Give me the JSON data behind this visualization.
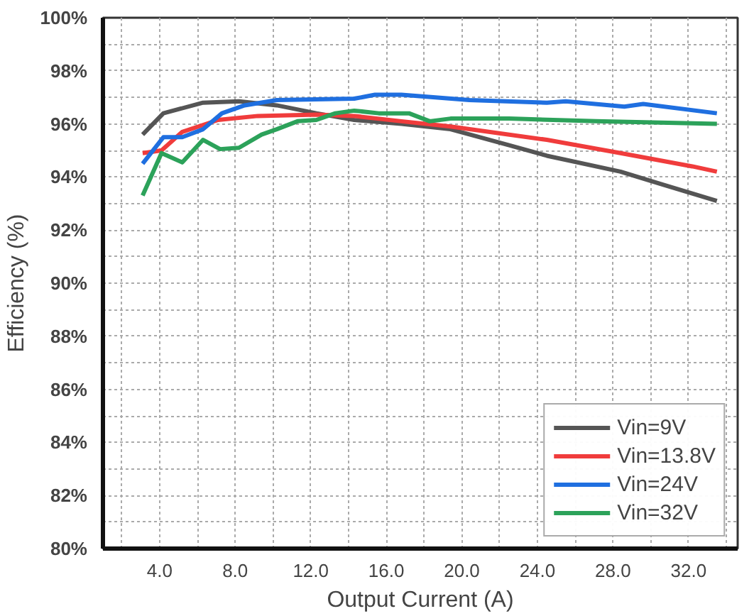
{
  "chart_data": {
    "type": "line",
    "xlabel": "Output Current (A)",
    "ylabel": "Efficiency (%)",
    "xlim": [
      1,
      34.6
    ],
    "ylim": [
      80,
      100
    ],
    "xticks": [
      {
        "value": 2,
        "label": null
      },
      {
        "value": 4,
        "label": "4.0"
      },
      {
        "value": 6,
        "label": null
      },
      {
        "value": 8,
        "label": "8.0"
      },
      {
        "value": 10,
        "label": null
      },
      {
        "value": 12,
        "label": "12.0"
      },
      {
        "value": 14,
        "label": null
      },
      {
        "value": 16,
        "label": "16.0"
      },
      {
        "value": 18,
        "label": null
      },
      {
        "value": 20,
        "label": "20.0"
      },
      {
        "value": 22,
        "label": null
      },
      {
        "value": 24,
        "label": "24.0"
      },
      {
        "value": 26,
        "label": null
      },
      {
        "value": 28,
        "label": "28.0"
      },
      {
        "value": 30,
        "label": null
      },
      {
        "value": 32,
        "label": "32.0"
      },
      {
        "value": 34,
        "label": null
      }
    ],
    "yticks": [
      {
        "value": 80,
        "label": "80%"
      },
      {
        "value": 81,
        "label": null
      },
      {
        "value": 82,
        "label": "82%"
      },
      {
        "value": 83,
        "label": null
      },
      {
        "value": 84,
        "label": "84%"
      },
      {
        "value": 85,
        "label": null
      },
      {
        "value": 86,
        "label": "86%"
      },
      {
        "value": 87,
        "label": null
      },
      {
        "value": 88,
        "label": "88%"
      },
      {
        "value": 89,
        "label": null
      },
      {
        "value": 90,
        "label": "90%"
      },
      {
        "value": 91,
        "label": null
      },
      {
        "value": 92,
        "label": "92%"
      },
      {
        "value": 93,
        "label": null
      },
      {
        "value": 94,
        "label": "94%"
      },
      {
        "value": 95,
        "label": null
      },
      {
        "value": 96,
        "label": "96%"
      },
      {
        "value": 97,
        "label": null
      },
      {
        "value": 98,
        "label": "98%"
      },
      {
        "value": 99,
        "label": null
      },
      {
        "value": 100,
        "label": "100%"
      }
    ],
    "grid": true,
    "legend": "bottom right",
    "marker": "none",
    "line_style": "solid",
    "series": [
      {
        "name": "Vin=9V",
        "color": "#555555",
        "x": [
          3.1,
          4.2,
          6.3,
          8.2,
          10.2,
          12.3,
          14.3,
          16.8,
          19.4,
          22.5,
          24.5,
          28.4,
          30.7,
          33.5
        ],
        "values": [
          95.6,
          96.4,
          96.8,
          96.85,
          96.7,
          96.4,
          96.15,
          96.0,
          95.8,
          95.2,
          94.8,
          94.2,
          93.7,
          93.1
        ]
      },
      {
        "name": "Vin=13.8V",
        "color": "#f03c3c",
        "x": [
          3.1,
          4.1,
          5.2,
          7.1,
          9.2,
          12.3,
          14.3,
          16.8,
          19.4,
          24.5,
          28.4,
          32.2,
          33.5
        ],
        "values": [
          94.9,
          95.0,
          95.7,
          96.15,
          96.3,
          96.35,
          96.3,
          96.1,
          95.9,
          95.4,
          94.9,
          94.4,
          94.2
        ]
      },
      {
        "name": "Vin=24V",
        "color": "#1f6fe0",
        "x": [
          3.1,
          4.2,
          5.2,
          6.3,
          7.3,
          8.5,
          10.2,
          14.3,
          15.4,
          16.8,
          20.4,
          24.5,
          25.5,
          28.6,
          29.6,
          33.5
        ],
        "values": [
          94.5,
          95.5,
          95.5,
          95.8,
          96.4,
          96.7,
          96.9,
          96.95,
          97.1,
          97.1,
          96.9,
          96.8,
          96.85,
          96.65,
          96.75,
          96.4
        ]
      },
      {
        "name": "Vin=32V",
        "color": "#2ca25a",
        "x": [
          3.1,
          4.1,
          5.2,
          6.3,
          7.2,
          8.2,
          9.4,
          10.2,
          11.3,
          12.3,
          13.3,
          14.3,
          15.6,
          17.2,
          18.3,
          19.4,
          22.5,
          27.1,
          33.5
        ],
        "values": [
          93.3,
          94.9,
          94.55,
          95.4,
          95.05,
          95.1,
          95.6,
          95.8,
          96.1,
          96.15,
          96.4,
          96.5,
          96.4,
          96.4,
          96.1,
          96.2,
          96.2,
          96.1,
          96.0
        ]
      }
    ]
  }
}
